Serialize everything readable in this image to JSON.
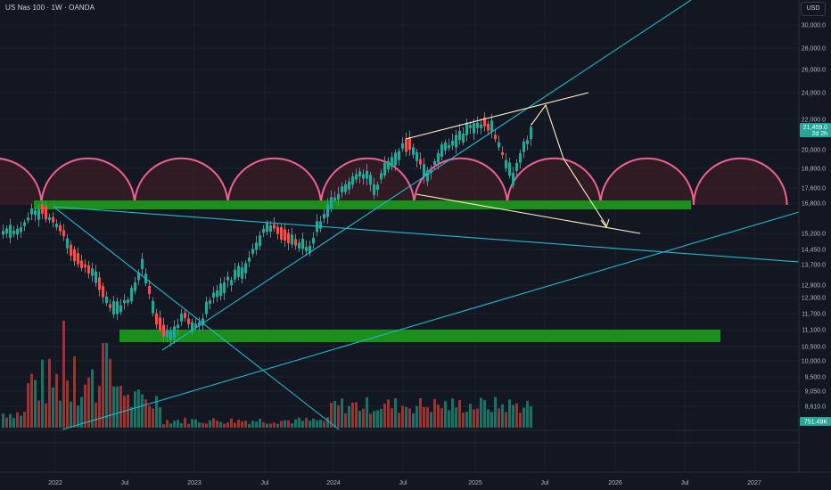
{
  "header": {
    "title": "US Nas 100 · 1W · OANDA",
    "currency": "USD"
  },
  "price_axis": {
    "ticks": [
      "30,000.0",
      "28,000.0",
      "26,000.0",
      "24,000.0",
      "22,000.0",
      "20,000.0",
      "18,800.0",
      "17,600.0",
      "16,800.0",
      "15,200.0",
      "14,450.0",
      "13,700.0",
      "12,900.0",
      "12,300.0",
      "11,700.0",
      "11,100.0",
      "10,500.0",
      "10,000.0",
      "9,500.0",
      "9,050.0",
      "8,610.0"
    ],
    "last_price": "21,459.0",
    "countdown": "2d 2h",
    "volume_label": "751.49K"
  },
  "time_axis": {
    "ticks": [
      "2022",
      "Jul",
      "2023",
      "Jul",
      "2024",
      "Jul",
      "2025",
      "Jul",
      "2026",
      "Jul",
      "2027"
    ]
  },
  "colors": {
    "up": "#26a69a",
    "down": "#ef5350",
    "trend": "#22b8cf",
    "zone": "#1b8f1b",
    "arcs": "#f06292",
    "projection": "#fff3c4",
    "price_badge": "#26a69a"
  }
}
